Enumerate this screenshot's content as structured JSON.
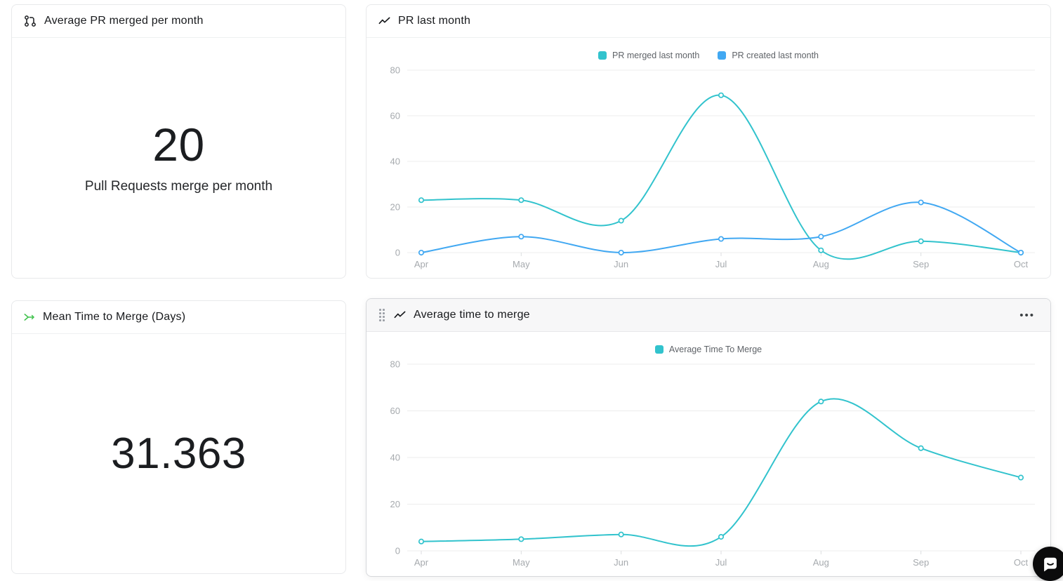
{
  "cards": {
    "avg_pr_merged": {
      "title": "Average PR merged per month",
      "value": "20",
      "subtitle": "Pull Requests merge per month"
    },
    "pr_last_month": {
      "title": "PR last month"
    },
    "mean_time_to_merge": {
      "title": "Mean Time to Merge (Days)",
      "value": "31.363"
    },
    "average_time_to_merge": {
      "title": "Average time to merge",
      "menu_label": "•••"
    }
  },
  "icons": {
    "avg_pr_merged": "git-pull-request-icon",
    "pr_last_month": "trending-line-icon",
    "mean_time_to_merge": "merge-arrow-icon",
    "average_time_to_merge": "trending-line-icon",
    "drag_handle": "grip-dots-icon",
    "card_menu": "more-horizontal-icon",
    "chat": "chat-bubble-icon"
  },
  "colors": {
    "teal": "#32c3cd",
    "blue": "#41a8f2",
    "green_icon": "#3fc24c",
    "axis_label": "#a6aaae",
    "grid_line": "#ececec",
    "tick_mark": "#dcdee0",
    "card_border": "#e8e9eb",
    "selected_header_bg": "#f7f7f8",
    "text_dark": "#17191c",
    "chat_button_bg": "#0b0b0c"
  },
  "chart_data": [
    {
      "type": "line",
      "title": "PR last month",
      "categories": [
        "Apr",
        "May",
        "Jun",
        "Jul",
        "Aug",
        "Sep",
        "Oct"
      ],
      "series": [
        {
          "name": "PR merged last month",
          "color": "#32c3cd",
          "values": [
            23,
            23,
            14,
            69,
            1,
            5,
            0
          ]
        },
        {
          "name": "PR created last month",
          "color": "#41a8f2",
          "values": [
            0,
            7,
            0,
            6,
            7,
            22,
            0
          ]
        }
      ],
      "ylim": [
        0,
        80
      ],
      "yticks": [
        0,
        20,
        40,
        60,
        80
      ],
      "grid": true,
      "legend_position": "top"
    },
    {
      "type": "line",
      "title": "Average time to merge",
      "categories": [
        "Apr",
        "May",
        "Jun",
        "Jul",
        "Aug",
        "Sep",
        "Oct"
      ],
      "series": [
        {
          "name": "Average Time To Merge",
          "color": "#32c3cd",
          "values": [
            4,
            5,
            7,
            6,
            64,
            44,
            31.4
          ]
        }
      ],
      "ylim": [
        0,
        80
      ],
      "yticks": [
        0,
        20,
        40,
        60,
        80
      ],
      "grid": true,
      "legend_position": "top"
    }
  ]
}
